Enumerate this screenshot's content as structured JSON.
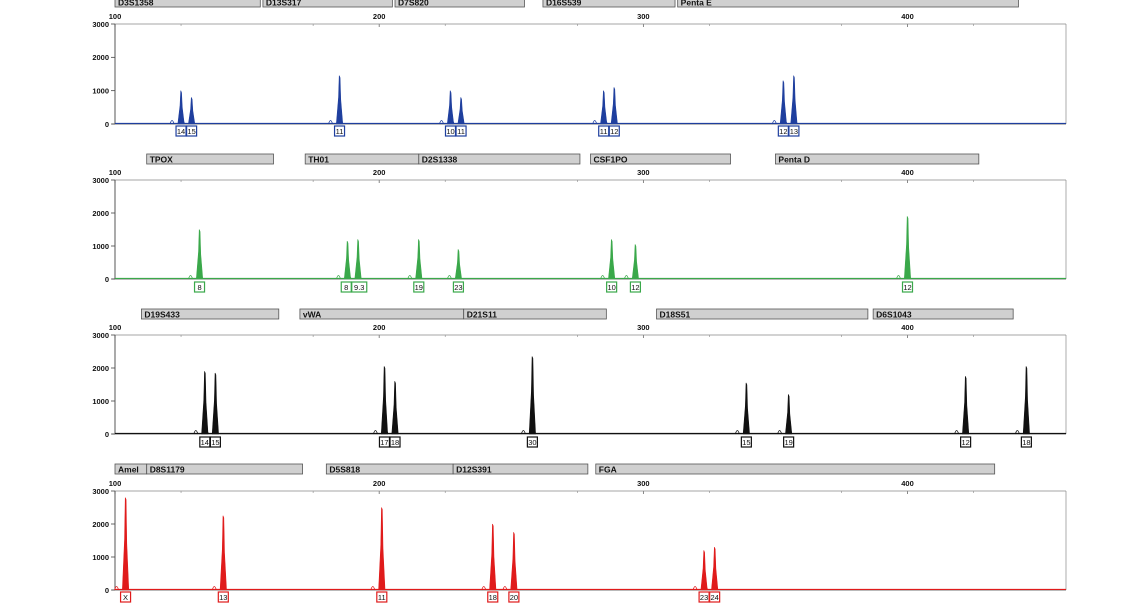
{
  "chart_data": [
    {
      "type": "line",
      "panel": "blue",
      "color": "#1f3f9e",
      "xlim": [
        100,
        460
      ],
      "ylim": [
        0,
        3000
      ],
      "x_ticks": [
        100,
        200,
        300,
        400
      ],
      "y_ticks": [
        0,
        1000,
        2000,
        3000
      ],
      "loci": [
        {
          "name": "D3S1358",
          "start": 100,
          "end": 155
        },
        {
          "name": "D13S317",
          "start": 156,
          "end": 205
        },
        {
          "name": "D7S820",
          "start": 206,
          "end": 255
        },
        {
          "name": "D16S539",
          "start": 262,
          "end": 312
        },
        {
          "name": "Penta E",
          "start": 313,
          "end": 442
        }
      ],
      "peaks": [
        {
          "x": 125,
          "h": 1000
        },
        {
          "x": 129,
          "h": 800
        },
        {
          "x": 185,
          "h": 1450
        },
        {
          "x": 227,
          "h": 1000
        },
        {
          "x": 231,
          "h": 800
        },
        {
          "x": 285,
          "h": 1000
        },
        {
          "x": 289,
          "h": 1100
        },
        {
          "x": 353,
          "h": 1300
        },
        {
          "x": 357,
          "h": 1450
        }
      ],
      "allele_labels": [
        {
          "text": "14",
          "x": 125
        },
        {
          "text": "15",
          "x": 129
        },
        {
          "text": "11",
          "x": 185
        },
        {
          "text": "10",
          "x": 227
        },
        {
          "text": "11",
          "x": 231
        },
        {
          "text": "11",
          "x": 285
        },
        {
          "text": "12",
          "x": 289
        },
        {
          "text": "12",
          "x": 353
        },
        {
          "text": "13",
          "x": 357
        }
      ]
    },
    {
      "type": "line",
      "panel": "green",
      "color": "#3aa84a",
      "xlim": [
        100,
        460
      ],
      "ylim": [
        0,
        3000
      ],
      "x_ticks": [
        100,
        200,
        300,
        400
      ],
      "y_ticks": [
        0,
        1000,
        2000,
        3000
      ],
      "loci": [
        {
          "name": "TPOX",
          "start": 112,
          "end": 160
        },
        {
          "name": "TH01",
          "start": 172,
          "end": 215
        },
        {
          "name": "D2S1338",
          "start": 215,
          "end": 276
        },
        {
          "name": "CSF1PO",
          "start": 280,
          "end": 333
        },
        {
          "name": "Penta D",
          "start": 350,
          "end": 427
        }
      ],
      "peaks": [
        {
          "x": 132,
          "h": 1500
        },
        {
          "x": 188,
          "h": 1150
        },
        {
          "x": 192,
          "h": 1200
        },
        {
          "x": 215,
          "h": 1200
        },
        {
          "x": 230,
          "h": 900
        },
        {
          "x": 288,
          "h": 1200
        },
        {
          "x": 297,
          "h": 1050
        },
        {
          "x": 400,
          "h": 1900
        }
      ],
      "allele_labels": [
        {
          "text": "8",
          "x": 132
        },
        {
          "text": "8",
          "x": 188
        },
        {
          "text": "9.3",
          "x": 192
        },
        {
          "text": "19",
          "x": 215
        },
        {
          "text": "23",
          "x": 230
        },
        {
          "text": "10",
          "x": 288
        },
        {
          "text": "12",
          "x": 297
        },
        {
          "text": "12",
          "x": 400
        }
      ]
    },
    {
      "type": "line",
      "panel": "black",
      "color": "#111111",
      "xlim": [
        100,
        460
      ],
      "ylim": [
        0,
        3000
      ],
      "x_ticks": [
        100,
        200,
        300,
        400
      ],
      "y_ticks": [
        0,
        1000,
        2000,
        3000
      ],
      "loci": [
        {
          "name": "D19S433",
          "start": 110,
          "end": 162
        },
        {
          "name": "vWA",
          "start": 170,
          "end": 232
        },
        {
          "name": "D21S11",
          "start": 232,
          "end": 286
        },
        {
          "name": "D18S51",
          "start": 305,
          "end": 385
        },
        {
          "name": "D6S1043",
          "start": 387,
          "end": 440
        }
      ],
      "peaks": [
        {
          "x": 134,
          "h": 1900
        },
        {
          "x": 138,
          "h": 1850
        },
        {
          "x": 202,
          "h": 2050
        },
        {
          "x": 206,
          "h": 1600
        },
        {
          "x": 258,
          "h": 2350
        },
        {
          "x": 339,
          "h": 1550
        },
        {
          "x": 355,
          "h": 1200
        },
        {
          "x": 422,
          "h": 1750
        },
        {
          "x": 445,
          "h": 2050
        }
      ],
      "allele_labels": [
        {
          "text": "14",
          "x": 134
        },
        {
          "text": "15",
          "x": 138
        },
        {
          "text": "17",
          "x": 202
        },
        {
          "text": "18",
          "x": 206
        },
        {
          "text": "30",
          "x": 258
        },
        {
          "text": "15",
          "x": 339
        },
        {
          "text": "19",
          "x": 355
        },
        {
          "text": "12",
          "x": 422
        },
        {
          "text": "18",
          "x": 445
        }
      ]
    },
    {
      "type": "line",
      "panel": "red",
      "color": "#e01b1b",
      "xlim": [
        100,
        460
      ],
      "ylim": [
        0,
        3000
      ],
      "x_ticks": [
        100,
        200,
        300,
        400
      ],
      "y_ticks": [
        0,
        1000,
        2000,
        3000
      ],
      "loci": [
        {
          "name": "Amel",
          "start": 100,
          "end": 112
        },
        {
          "name": "D8S1179",
          "start": 112,
          "end": 171
        },
        {
          "name": "D5S818",
          "start": 180,
          "end": 228
        },
        {
          "name": "D12S391",
          "start": 228,
          "end": 279
        },
        {
          "name": "FGA",
          "start": 282,
          "end": 433
        }
      ],
      "peaks": [
        {
          "x": 104,
          "h": 2800
        },
        {
          "x": 141,
          "h": 2250
        },
        {
          "x": 201,
          "h": 2500
        },
        {
          "x": 243,
          "h": 2000
        },
        {
          "x": 251,
          "h": 1750
        },
        {
          "x": 323,
          "h": 1200
        },
        {
          "x": 327,
          "h": 1300
        }
      ],
      "allele_labels": [
        {
          "text": "X",
          "x": 104
        },
        {
          "text": "13",
          "x": 141
        },
        {
          "text": "11",
          "x": 201
        },
        {
          "text": "18",
          "x": 243
        },
        {
          "text": "20",
          "x": 251
        },
        {
          "text": "23",
          "x": 323
        },
        {
          "text": "24",
          "x": 327
        }
      ]
    }
  ]
}
